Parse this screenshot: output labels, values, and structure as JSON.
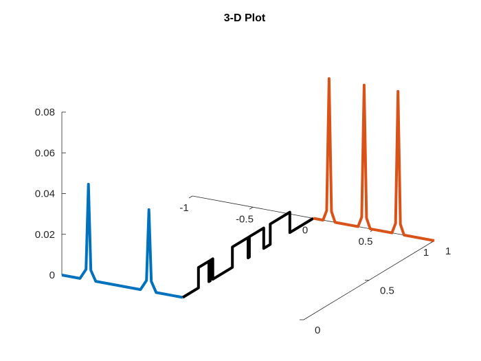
{
  "chart_data": {
    "type": "line",
    "projection": "3-D",
    "title": "3-D Plot",
    "xlabel": "",
    "ylabel": "",
    "zlabel": "",
    "xlim": [
      -1,
      1
    ],
    "ylim": [
      0,
      1
    ],
    "zlim": [
      0,
      0.08
    ],
    "x_ticks": [
      "-1",
      "-0.5",
      "0",
      "0.5",
      "1"
    ],
    "y_ticks": [
      "0",
      "0.5",
      "1"
    ],
    "z_ticks": [
      "0",
      "0.02",
      "0.04",
      "0.06",
      "0.08"
    ],
    "grid": false,
    "legend": "none",
    "series": [
      {
        "color": "#0072BD",
        "description": "line along y = 0 from x = -1 to x = 0 with two narrow peaks",
        "points": [
          [
            -1.0,
            0,
            0.0
          ],
          [
            -0.85,
            0,
            0.0
          ],
          [
            -0.8,
            0,
            0.005
          ],
          [
            -0.78,
            0,
            0.047
          ],
          [
            -0.76,
            0,
            0.005
          ],
          [
            -0.72,
            0,
            0.0
          ],
          [
            -0.35,
            0,
            0.0
          ],
          [
            -0.3,
            0,
            0.005
          ],
          [
            -0.28,
            0,
            0.04
          ],
          [
            -0.26,
            0,
            0.005
          ],
          [
            -0.22,
            0,
            0.0
          ],
          [
            0.0,
            0,
            0.0
          ]
        ]
      },
      {
        "color": "#000000",
        "description": "step line along x = 0 from y = 0 to y = 1",
        "points": [
          [
            0,
            0.0,
            0.0
          ],
          [
            0,
            0.12,
            0.0
          ],
          [
            0,
            0.12,
            0.01
          ],
          [
            0,
            0.2,
            0.01
          ],
          [
            0,
            0.2,
            0.0
          ],
          [
            0,
            0.21,
            0.0
          ],
          [
            0,
            0.21,
            0.01
          ],
          [
            0,
            0.23,
            0.01
          ],
          [
            0,
            0.23,
            0.0
          ],
          [
            0,
            0.38,
            0.0
          ],
          [
            0,
            0.38,
            0.01
          ],
          [
            0,
            0.5,
            0.01
          ],
          [
            0,
            0.5,
            0.0
          ],
          [
            0,
            0.51,
            0.0
          ],
          [
            0,
            0.51,
            0.01
          ],
          [
            0,
            0.62,
            0.01
          ],
          [
            0,
            0.62,
            0.0
          ],
          [
            0,
            0.67,
            0.0
          ],
          [
            0,
            0.67,
            0.01
          ],
          [
            0,
            0.82,
            0.01
          ],
          [
            0,
            0.82,
            0.0
          ],
          [
            0,
            1.0,
            0.0
          ]
        ]
      },
      {
        "color": "#D95319",
        "description": "line along y = 1 from x = 0 to x = 1 with three narrow peaks",
        "points": [
          [
            0.0,
            1,
            0.0
          ],
          [
            0.08,
            1,
            0.0
          ],
          [
            0.11,
            1,
            0.005
          ],
          [
            0.13,
            1,
            0.07
          ],
          [
            0.15,
            1,
            0.005
          ],
          [
            0.18,
            1,
            0.0
          ],
          [
            0.37,
            1,
            0.0
          ],
          [
            0.4,
            1,
            0.005
          ],
          [
            0.42,
            1,
            0.07
          ],
          [
            0.44,
            1,
            0.005
          ],
          [
            0.47,
            1,
            0.0
          ],
          [
            0.65,
            1,
            0.0
          ],
          [
            0.68,
            1,
            0.005
          ],
          [
            0.7,
            1,
            0.07
          ],
          [
            0.72,
            1,
            0.005
          ],
          [
            0.75,
            1,
            0.0
          ],
          [
            1.0,
            1,
            0.0
          ]
        ]
      }
    ]
  }
}
